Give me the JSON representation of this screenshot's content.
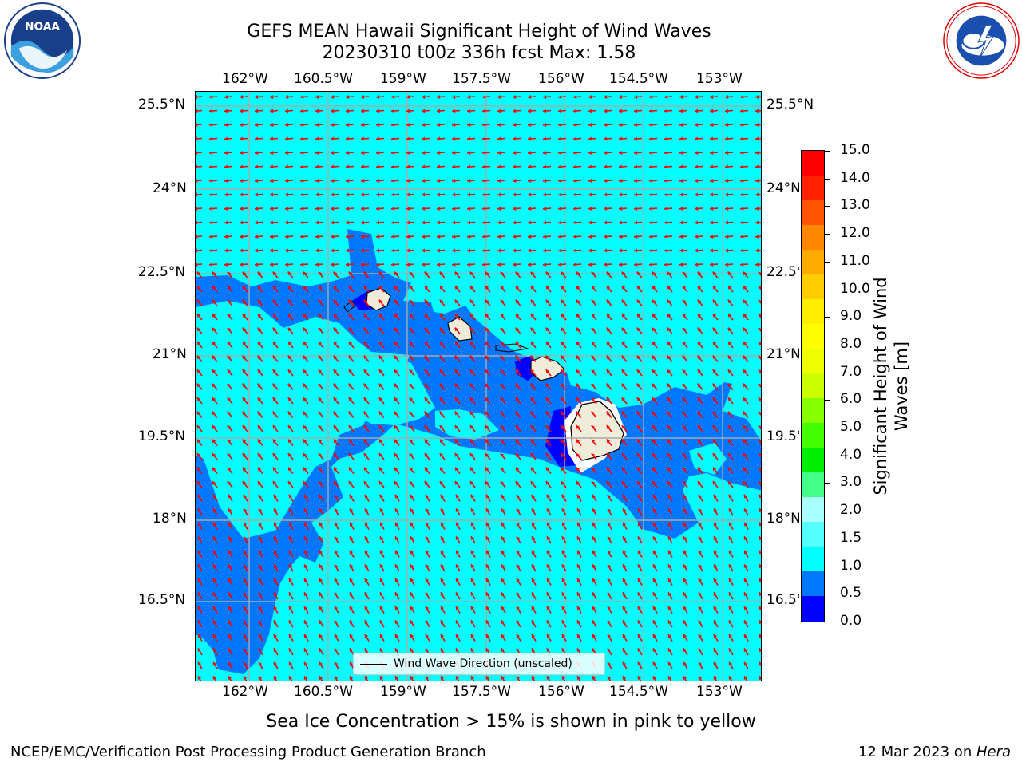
{
  "title": {
    "line1": "GEFS MEAN Hawaii Significant Height of Wind Waves",
    "line2": "20230310 t00z 336h fcst   Max: 1.58"
  },
  "axes": {
    "lon_labels": [
      "162°W",
      "160.5°W",
      "159°W",
      "157.5°W",
      "156°W",
      "154.5°W",
      "153°W"
    ],
    "lat_labels": [
      "25.5°N",
      "24°N",
      "22.5°N",
      "21°N",
      "19.5°N",
      "18°N",
      "16.5°N"
    ],
    "lat_labels_right": [
      "25.5°N",
      "24°N",
      "22.5°N",
      "21°N",
      "19.5°N",
      "18°N",
      "16.5°N"
    ]
  },
  "colorbar": {
    "label": "Significant Height of Wind Waves [m]",
    "ticks": [
      "15.0",
      "14.0",
      "13.0",
      "12.0",
      "11.0",
      "10.0",
      "9.0",
      "8.0",
      "7.0",
      "6.0",
      "5.0",
      "4.0",
      "3.0",
      "2.0",
      "1.5",
      "1.0",
      "0.5",
      "0.0"
    ],
    "colors": [
      "#ff0000",
      "#ff2200",
      "#ff5500",
      "#ff8800",
      "#ffaa00",
      "#ffcc00",
      "#ffee00",
      "#ffff00",
      "#eeff00",
      "#ccff00",
      "#88ff00",
      "#44ff00",
      "#00ee00",
      "#44ff88",
      "#aaffff",
      "#55ffff",
      "#00ffff",
      "#0077ff",
      "#0000ff"
    ]
  },
  "legend": {
    "label": "Wind Wave Direction (unscaled)"
  },
  "map_colors": {
    "ocean_low": "#00ffff",
    "ocean_mid": "#0077ff",
    "ocean_min": "#0000ff",
    "land": "#efedd9",
    "arrows": "#ff0000",
    "grid": "#aaaaaa"
  },
  "note": "Sea Ice Concentration > 15% is shown in pink to yellow",
  "footer": {
    "left": "NCEP/EMC/Verification Post Processing Product Generation Branch",
    "date": "12 Mar 2023 on ",
    "machine": "Hera"
  },
  "logos": {
    "noaa_text": "NOAA",
    "nws_text": "NATIONAL WEATHER SERVICE"
  }
}
